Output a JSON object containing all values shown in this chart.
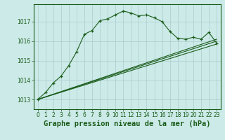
{
  "title": "Graphe pression niveau de la mer (hPa)",
  "bg_color": "#cceae8",
  "grid_color": "#aacccc",
  "line_color": "#1a5c1a",
  "xlim": [
    -0.5,
    23.5
  ],
  "ylim": [
    1012.5,
    1017.9
  ],
  "yticks": [
    1013,
    1014,
    1015,
    1016,
    1017
  ],
  "xticks": [
    0,
    1,
    2,
    3,
    4,
    5,
    6,
    7,
    8,
    9,
    10,
    11,
    12,
    13,
    14,
    15,
    16,
    17,
    18,
    19,
    20,
    21,
    22,
    23
  ],
  "series_straight1": {
    "x": [
      0,
      23
    ],
    "y": [
      1013.0,
      1015.85
    ]
  },
  "series_straight2": {
    "x": [
      0,
      23
    ],
    "y": [
      1013.0,
      1016.0
    ]
  },
  "series_straight3": {
    "x": [
      0,
      23
    ],
    "y": [
      1013.0,
      1016.1
    ]
  },
  "series_main": {
    "x": [
      0,
      1,
      2,
      3,
      4,
      5,
      6,
      7,
      8,
      9,
      10,
      11,
      12,
      13,
      14,
      15,
      16,
      17,
      18,
      19,
      20,
      21,
      22,
      23
    ],
    "y": [
      1013.0,
      1013.35,
      1013.85,
      1014.2,
      1014.75,
      1015.45,
      1016.35,
      1016.55,
      1017.05,
      1017.15,
      1017.35,
      1017.55,
      1017.45,
      1017.3,
      1017.35,
      1017.2,
      1017.0,
      1016.5,
      1016.15,
      1016.1,
      1016.2,
      1016.1,
      1016.45,
      1015.9
    ]
  },
  "title_fontsize": 7.5,
  "tick_fontsize": 5.5
}
